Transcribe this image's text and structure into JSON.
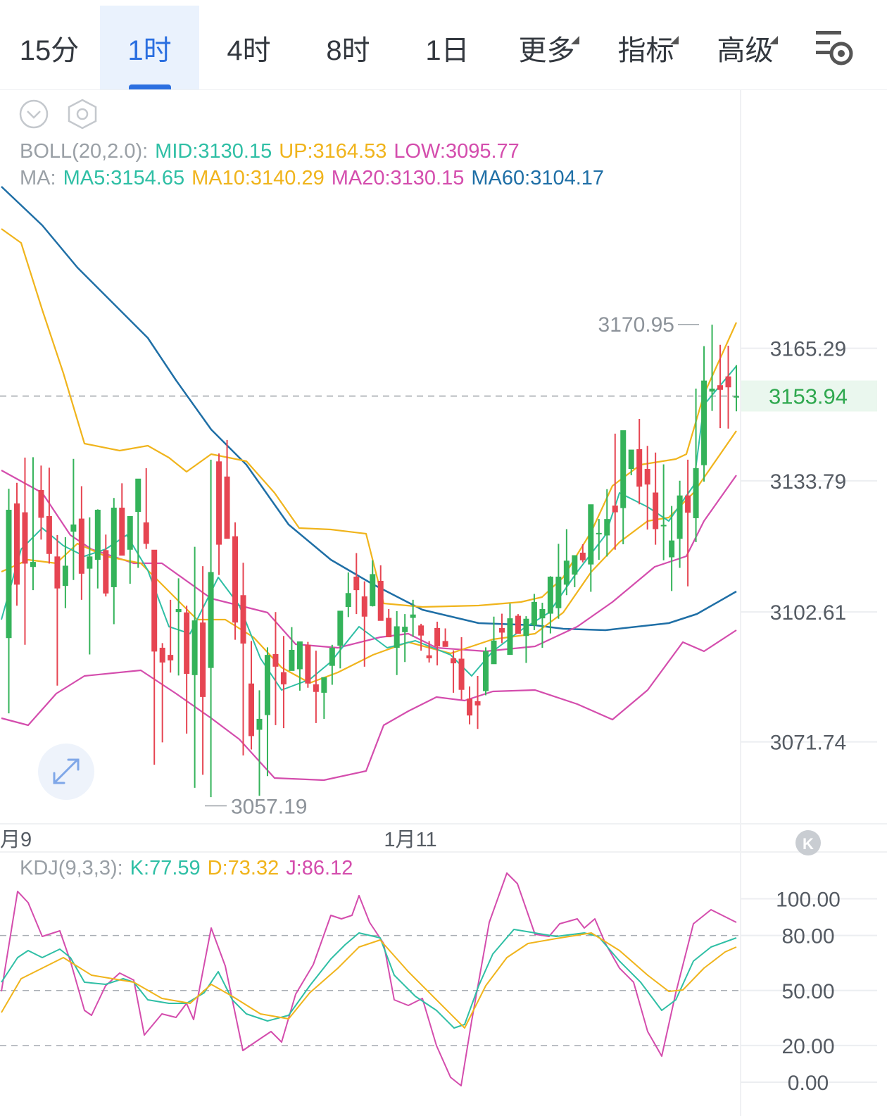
{
  "tabs": {
    "items": [
      {
        "label": "15分",
        "active": false,
        "dropdown": false
      },
      {
        "label": "1时",
        "active": true,
        "dropdown": false
      },
      {
        "label": "4时",
        "active": false,
        "dropdown": false
      },
      {
        "label": "8时",
        "active": false,
        "dropdown": false
      },
      {
        "label": "1日",
        "active": false,
        "dropdown": false
      },
      {
        "label": "更多",
        "active": false,
        "dropdown": true
      },
      {
        "label": "指标",
        "active": false,
        "dropdown": true
      },
      {
        "label": "高级",
        "active": false,
        "dropdown": true
      }
    ],
    "settings_icon": "chart-settings-icon"
  },
  "colors": {
    "up": "#34b35a",
    "down": "#e64552",
    "mid": "#2fbfa5",
    "upper": "#f0b41c",
    "lower": "#d44dad",
    "ma5": "#2fbfa5",
    "ma10": "#f0b41c",
    "ma20": "#d44dad",
    "ma60": "#1f6fa6",
    "muted": "#9aa0a6",
    "accent": "#2b6fe0"
  },
  "toolbar_icons": [
    "collapse-chevron-icon",
    "hexagon-settings-icon",
    "expand-arrows-icon",
    "k-logo-icon"
  ],
  "legend": {
    "boll": {
      "name": "BOLL(20,2.0):",
      "mid": "MID:3130.15",
      "up": "UP:3164.53",
      "low": "LOW:3095.77"
    },
    "ma": {
      "name": "MA:",
      "ma5": "MA5:3154.65",
      "ma10": "MA10:3140.29",
      "ma20": "MA20:3130.15",
      "ma60": "MA60:3104.17"
    },
    "kdj": {
      "name": "KDJ(9,3,3):",
      "k": "K:77.59",
      "d": "D:73.32",
      "j": "J:86.12"
    }
  },
  "price_axis": {
    "ticks": [
      "3165.29",
      "3133.79",
      "3102.61",
      "3071.74"
    ],
    "current_price": "3153.94",
    "high_label": "3170.95",
    "low_label": "3057.19"
  },
  "time_axis": {
    "labels": [
      "月9",
      "1月11"
    ]
  },
  "kdj_axis": {
    "ticks": [
      "100.00",
      "80.00",
      "50.00",
      "20.00",
      "0.00"
    ]
  },
  "chart_data": {
    "type": "candlestick",
    "interval": "1时",
    "price_range": [
      3050,
      3180
    ],
    "candles_ohlc": [
      [
        3096.4,
        3131.9,
        3078.5,
        3126.9
      ],
      [
        3128.4,
        3133.3,
        3104.1,
        3109.1
      ],
      [
        3126.3,
        3139.3,
        3094.8,
        3114.1
      ],
      [
        3113.3,
        3139.4,
        3107.8,
        3114.5
      ],
      [
        3131.6,
        3137.4,
        3119.8,
        3125.0
      ],
      [
        3125.4,
        3136.9,
        3114.1,
        3116.4
      ],
      [
        3115.8,
        3120.9,
        3085.1,
        3108.2
      ],
      [
        3108.8,
        3120.4,
        3103.5,
        3113.6
      ],
      [
        3121.7,
        3139.0,
        3110.2,
        3123.4
      ],
      [
        3124.8,
        3132.5,
        3105.5,
        3111.7
      ],
      [
        3112.9,
        3125.1,
        3092.5,
        3115.8
      ],
      [
        3115.0,
        3127.0,
        3108.2,
        3126.9
      ],
      [
        3117.3,
        3121.0,
        3106.3,
        3107.0
      ],
      [
        3108.5,
        3129.7,
        3099.7,
        3127.4
      ],
      [
        3127.4,
        3133.2,
        3119.9,
        3116.0
      ],
      [
        3117.4,
        3121.2,
        3109.3,
        3125.4
      ],
      [
        3126.4,
        3133.5,
        3113.1,
        3134.3
      ],
      [
        3123.9,
        3136.8,
        3117.6,
        3118.8
      ],
      [
        3117.4,
        3116.9,
        3066.3,
        3093.2
      ],
      [
        3094.1,
        3095.2,
        3071.6,
        3090.6
      ],
      [
        3092.4,
        3105.5,
        3088.2,
        3091.1
      ],
      [
        3102.6,
        3110.6,
        3087.5,
        3103.3
      ],
      [
        3102.5,
        3104.1,
        3073.7,
        3087.9
      ],
      [
        3087.6,
        3118.1,
        3060.8,
        3100.6
      ],
      [
        3100.1,
        3113.5,
        3063.9,
        3082.4
      ],
      [
        3089.3,
        3138.8,
        3058.6,
        3112.1
      ],
      [
        3138.4,
        3140.3,
        3111.4,
        3118.6
      ],
      [
        3134.8,
        3143.5,
        3122.1,
        3120.0
      ],
      [
        3120.6,
        3123.9,
        3096.0,
        3100.1
      ],
      [
        3106.6,
        3114.3,
        3068.5,
        3095.1
      ],
      [
        3085.6,
        3095.7,
        3069.9,
        3073.1
      ],
      [
        3074.6,
        3084.0,
        3058.9,
        3077.2
      ],
      [
        3078.1,
        3094.2,
        3063.6,
        3092.4
      ],
      [
        3092.6,
        3102.6,
        3075.7,
        3089.6
      ],
      [
        3088.3,
        3096.9,
        3075.0,
        3085.4
      ],
      [
        3088.6,
        3099.0,
        3090.1,
        3093.6
      ],
      [
        3089.0,
        3091.9,
        3083.9,
        3095.6
      ],
      [
        3094.8,
        3095.5,
        3084.6,
        3085.6
      ],
      [
        3085.4,
        3093.4,
        3076.2,
        3083.6
      ],
      [
        3083.4,
        3086.2,
        3077.2,
        3087.1
      ],
      [
        3089.8,
        3094.8,
        3085.3,
        3094.1
      ],
      [
        3094.6,
        3101.8,
        3089.2,
        3102.9
      ],
      [
        3103.8,
        3112.0,
        3101.4,
        3107.1
      ],
      [
        3111.0,
        3116.6,
        3102.1,
        3107.8
      ],
      [
        3106.3,
        3109.9,
        3089.6,
        3101.5
      ],
      [
        3104.0,
        3114.9,
        3103.9,
        3111.6
      ],
      [
        3110.0,
        3113.7,
        3103.7,
        3100.5
      ],
      [
        3101.2,
        3103.3,
        3098.9,
        3096.6
      ],
      [
        3094.1,
        3102.8,
        3087.6,
        3099.2
      ],
      [
        3097.8,
        3102.1,
        3090.7,
        3099.1
      ],
      [
        3101.2,
        3105.5,
        3096.7,
        3102.0
      ],
      [
        3099.4,
        3099.8,
        3093.4,
        3097.0
      ],
      [
        3092.3,
        3095.7,
        3090.6,
        3091.6
      ],
      [
        3098.8,
        3100.3,
        3089.9,
        3094.4
      ],
      [
        3095.7,
        3098.7,
        3094.9,
        3094.3
      ],
      [
        3091.6,
        3093.5,
        3083.4,
        3090.4
      ],
      [
        3091.5,
        3096.6,
        3081.8,
        3084.1
      ],
      [
        3082.0,
        3084.9,
        3075.9,
        3078.0
      ],
      [
        3081.4,
        3087.4,
        3074.8,
        3080.4
      ],
      [
        3083.8,
        3094.2,
        3082.8,
        3093.3
      ],
      [
        3090.2,
        3101.5,
        3092.0,
        3095.8
      ],
      [
        3098.8,
        3102.2,
        3095.2,
        3097.7
      ],
      [
        3092.4,
        3104.6,
        3093.8,
        3101.1
      ],
      [
        3101.7,
        3102.1,
        3098.9,
        3097.4
      ],
      [
        3096.9,
        3101.6,
        3090.5,
        3101.0
      ],
      [
        3099.4,
        3106.9,
        3098.3,
        3105.0
      ],
      [
        3101.1,
        3104.8,
        3094.1,
        3103.3
      ],
      [
        3102.2,
        3111.1,
        3097.5,
        3111.0
      ],
      [
        3103.5,
        3118.8,
        3101.0,
        3111.0
      ],
      [
        3109.1,
        3122.3,
        3106.6,
        3114.8
      ],
      [
        3111.5,
        3114.5,
        3108.5,
        3116.1
      ],
      [
        3116.7,
        3118.7,
        3114.4,
        3114.9
      ],
      [
        3113.9,
        3123.1,
        3107.4,
        3128.2
      ],
      [
        3121.4,
        3124.7,
        3115.0,
        3121.4
      ],
      [
        3120.8,
        3131.8,
        3115.8,
        3124.7
      ],
      [
        3127.9,
        3145.0,
        3117.4,
        3126.3
      ],
      [
        3127.3,
        3132.1,
        3118.7,
        3145.8
      ],
      [
        3136.6,
        3141.1,
        3135.1,
        3141.2
      ],
      [
        3141.3,
        3148.5,
        3128.2,
        3132.4
      ],
      [
        3136.6,
        3142.1,
        3122.2,
        3132.9
      ],
      [
        3131.0,
        3140.5,
        3118.6,
        3122.3
      ],
      [
        3123.0,
        3137.7,
        3114.9,
        3123.3
      ],
      [
        3115.6,
        3127.8,
        3107.6,
        3119.6
      ],
      [
        3120.0,
        3133.8,
        3113.1,
        3130.3
      ],
      [
        3130.3,
        3138.8,
        3108.7,
        3126.2
      ],
      [
        3124.9,
        3155.7,
        3119.2,
        3136.8
      ],
      [
        3137.5,
        3165.8,
        3133.6,
        3157.6
      ],
      [
        3155.0,
        3170.9,
        3150.4,
        3155.7
      ],
      [
        3156.5,
        3166.1,
        3146.3,
        3155.4
      ],
      [
        3158.6,
        3165.9,
        3146.2,
        3156.0
      ],
      [
        3153.7,
        3161.3,
        3150.3,
        3153.9
      ]
    ],
    "boll": {
      "mid": 3130.15,
      "up": 3164.53,
      "low": 3095.77
    },
    "ma": {
      "ma5": 3154.65,
      "ma10": 3140.29,
      "ma20": 3130.15,
      "ma60": 3104.17
    },
    "kdj": {
      "k": 77.59,
      "d": 73.32,
      "j": 86.12,
      "levels": [
        80,
        50,
        20
      ]
    }
  }
}
